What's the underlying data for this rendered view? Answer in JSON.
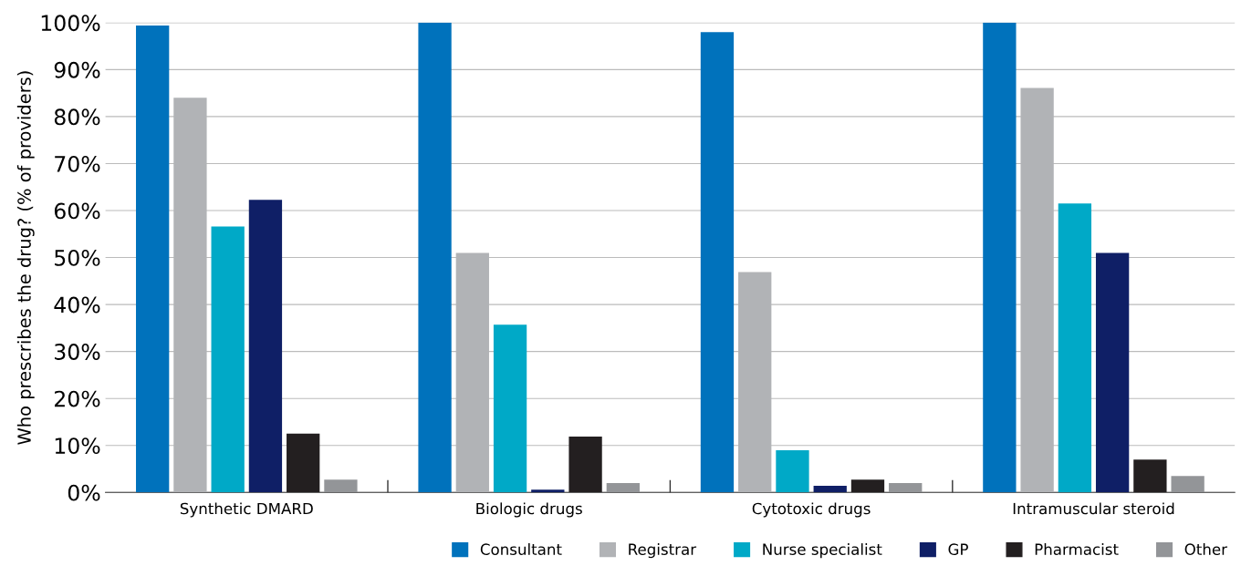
{
  "chart_data": {
    "type": "bar",
    "ylabel": "Who prescribes the drug? (% of providers)",
    "categories": [
      "Synthetic DMARD",
      "Biologic drugs",
      "Cytotoxic drugs",
      "Intramuscular steroid"
    ],
    "series": [
      {
        "name": "Consultant",
        "color": "#0072bc",
        "values": [
          99.4,
          100,
          98,
          100
        ]
      },
      {
        "name": "Registrar",
        "color": "#b1b3b6",
        "values": [
          84,
          51,
          46.9,
          86.1
        ]
      },
      {
        "name": "Nurse specialist",
        "color": "#00a9c7",
        "values": [
          56.6,
          35.7,
          9,
          61.5
        ]
      },
      {
        "name": "GP",
        "color": "#0f1f66",
        "values": [
          62.3,
          0.6,
          1.4,
          51
        ]
      },
      {
        "name": "Pharmacist",
        "color": "#231f20",
        "values": [
          12.5,
          11.9,
          2.7,
          7
        ]
      },
      {
        "name": "Other",
        "color": "#939598",
        "values": [
          2.7,
          2,
          2,
          3.5
        ]
      }
    ],
    "ylim": [
      0,
      100
    ],
    "yticks": [
      {
        "value": 0,
        "label": "0%"
      },
      {
        "value": 10,
        "label": "10%"
      },
      {
        "value": 20,
        "label": "20%"
      },
      {
        "value": 30,
        "label": "30%"
      },
      {
        "value": 40,
        "label": "40%"
      },
      {
        "value": 50,
        "label": "50%"
      },
      {
        "value": 60,
        "label": "60%"
      },
      {
        "value": 70,
        "label": "70%"
      },
      {
        "value": 80,
        "label": "80%"
      },
      {
        "value": 90,
        "label": "90%"
      },
      {
        "value": 100,
        "label": "100%"
      }
    ],
    "grid": "y",
    "legend": "bottom right"
  }
}
